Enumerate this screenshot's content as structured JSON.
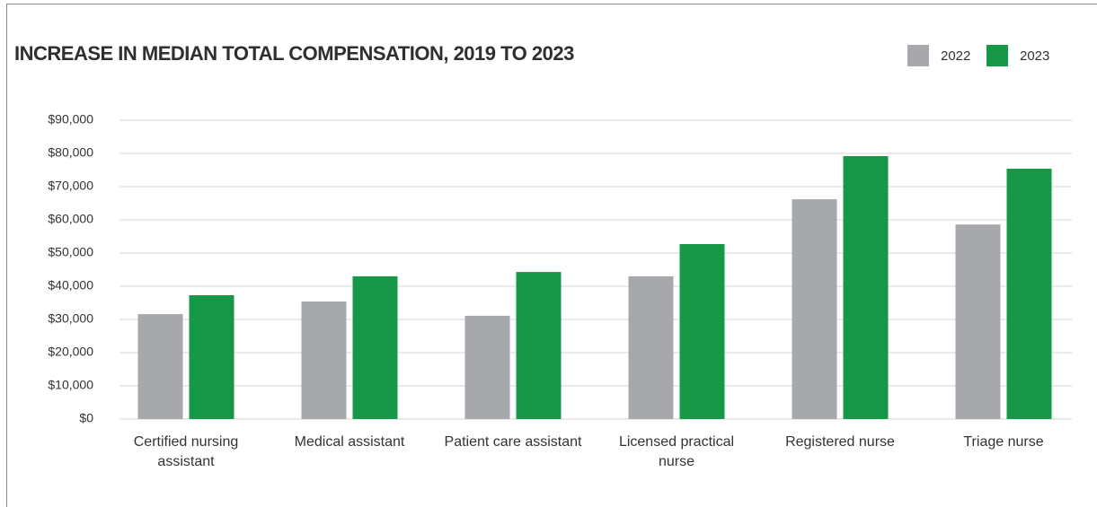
{
  "chart_data": {
    "type": "bar",
    "title": "INCREASE IN MEDIAN TOTAL COMPENSATION, 2019 TO 2023",
    "categories": [
      "Certified nursing assistant",
      "Medical assistant",
      "Patient care assistant",
      "Licensed practical nurse",
      "Registered nurse",
      "Triage nurse"
    ],
    "series": [
      {
        "name": "2022",
        "color": "#a7a8ab",
        "values": [
          31600,
          35400,
          31100,
          43000,
          66200,
          58600
        ]
      },
      {
        "name": "2023",
        "color": "#169848",
        "values": [
          37300,
          43000,
          44300,
          52700,
          79200,
          75400
        ]
      }
    ],
    "ylim": [
      0,
      90000
    ],
    "yticks": [
      {
        "value": 0,
        "label": "$0"
      },
      {
        "value": 10000,
        "label": "$10,000"
      },
      {
        "value": 20000,
        "label": "$20,000"
      },
      {
        "value": 30000,
        "label": "$30,000"
      },
      {
        "value": 40000,
        "label": "$40,000"
      },
      {
        "value": 50000,
        "label": "$50,000"
      },
      {
        "value": 60000,
        "label": "$60,000"
      },
      {
        "value": 70000,
        "label": "$70,000"
      },
      {
        "value": 80000,
        "label": "$80,000"
      },
      {
        "value": 90000,
        "label": "$90,000"
      }
    ],
    "grid": true,
    "legend": "top-right"
  }
}
